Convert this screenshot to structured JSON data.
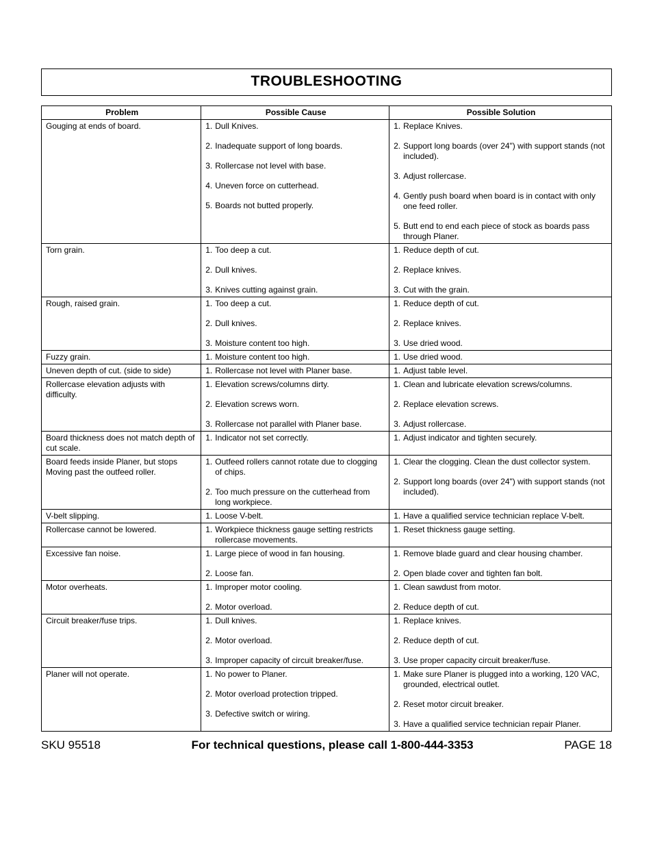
{
  "title": "TROUBLESHOOTING",
  "headers": {
    "problem": "Problem",
    "cause": "Possible Cause",
    "solution": "Possible Solution"
  },
  "footer": {
    "sku": "SKU 95518",
    "call": "For technical questions, please call 1-800-444-3353",
    "page": "PAGE 18"
  },
  "rows": [
    {
      "problem": "Gouging at ends of board.",
      "causes": [
        {
          "n": "1.",
          "t": "Dull Knives."
        },
        {
          "n": "2.",
          "t": "Inadequate support of long boards.",
          "sp": true
        },
        {
          "n": "3.",
          "t": "Rollercase not level with base.",
          "sp": true
        },
        {
          "n": "4.",
          "t": "Uneven force on cutterhead.",
          "sp": true
        },
        {
          "n": "5.",
          "t": "Boards not butted properly.",
          "sp": true
        }
      ],
      "solutions": [
        {
          "n": "1.",
          "t": "Replace Knives."
        },
        {
          "n": "2.",
          "t": "Support long boards (over 24\") with support stands (not included).",
          "sp": true
        },
        {
          "n": "3.",
          "t": "Adjust rollercase.",
          "sp": true
        },
        {
          "n": "4.",
          "t": "Gently push board when board is in contact with only one feed roller.",
          "sp": true
        },
        {
          "n": "5.",
          "t": "Butt end to end each piece of stock as boards pass through Planer.",
          "sp": true
        }
      ]
    },
    {
      "problem": "Torn grain.",
      "causes": [
        {
          "n": "1.",
          "t": "Too deep a cut."
        },
        {
          "n": "2.",
          "t": "Dull knives.",
          "sp": true
        },
        {
          "n": "3.",
          "t": "Knives cutting against grain.",
          "sp": true
        }
      ],
      "solutions": [
        {
          "n": "1.",
          "t": "Reduce depth of cut."
        },
        {
          "n": "2.",
          "t": "Replace knives.",
          "sp": true
        },
        {
          "n": "3.",
          "t": "Cut with the grain.",
          "sp": true
        }
      ]
    },
    {
      "problem": "Rough, raised grain.",
      "causes": [
        {
          "n": "1.",
          "t": "Too deep a cut."
        },
        {
          "n": "2.",
          "t": "Dull knives.",
          "sp": true
        },
        {
          "n": "3.",
          "t": "Moisture content too high.",
          "sp": true
        }
      ],
      "solutions": [
        {
          "n": "1.",
          "t": "Reduce depth of cut."
        },
        {
          "n": "2.",
          "t": "Replace knives.",
          "sp": true
        },
        {
          "n": "3.",
          "t": "Use dried wood.",
          "sp": true
        }
      ]
    },
    {
      "problem": "Fuzzy grain.",
      "causes": [
        {
          "n": "1.",
          "t": "Moisture content too high."
        }
      ],
      "solutions": [
        {
          "n": "1.",
          "t": "Use dried wood."
        }
      ]
    },
    {
      "problem": "Uneven depth of cut. (side to side)",
      "causes": [
        {
          "n": "1.",
          "t": "Rollercase not level with Planer base.",
          "hang": true
        }
      ],
      "solutions": [
        {
          "n": "1.",
          "t": "Adjust table level."
        }
      ]
    },
    {
      "problem": "Rollercase elevation adjusts with difficulty.",
      "causes": [
        {
          "n": "1.",
          "t": "Elevation screws/columns dirty."
        },
        {
          "n": "2.",
          "t": "Elevation screws worn.",
          "sp": true
        },
        {
          "n": "3.",
          "t": "Rollercase not parallel with Planer base.",
          "sp": true
        }
      ],
      "solutions": [
        {
          "n": "1.",
          "t": "Clean and lubricate elevation screws/columns."
        },
        {
          "n": "2.",
          "t": "Replace elevation screws.",
          "sp": true
        },
        {
          "n": "3.",
          "t": "Adjust rollercase.",
          "sp": true
        }
      ]
    },
    {
      "problem": "Board thickness does not match depth of cut scale.",
      "causes": [
        {
          "n": "1.",
          "t": "Indicator not set correctly."
        }
      ],
      "solutions": [
        {
          "n": "1.",
          "t": "Adjust indicator and tighten securely."
        }
      ]
    },
    {
      "problem": "Board feeds inside Planer, but stops Moving past the outfeed roller.",
      "causes": [
        {
          "n": "1.",
          "t": "Outfeed rollers cannot rotate due to clogging of chips.",
          "hang": true
        },
        {
          "n": "2.",
          "t": "Too much pressure on the cutterhead from long workpiece.",
          "sp": true,
          "hang": true
        }
      ],
      "solutions": [
        {
          "n": "1.",
          "t": "Clear the clogging.  Clean the dust collector system."
        },
        {
          "n": "2.",
          "t": "Support long boards (over 24\") with support stands (not included).",
          "sp": true
        }
      ]
    },
    {
      "problem": "V-belt slipping.",
      "causes": [
        {
          "n": "1.",
          "t": "Loose V-belt."
        }
      ],
      "solutions": [
        {
          "n": "1.",
          "t": "Have a qualified service technician replace V-belt."
        }
      ]
    },
    {
      "problem": "Rollercase cannot be lowered.",
      "causes": [
        {
          "n": "1.",
          "t": "Workpiece thickness gauge setting restricts rollercase movements.",
          "hang": true
        }
      ],
      "solutions": [
        {
          "n": "1.",
          "t": "Reset thickness gauge setting."
        }
      ]
    },
    {
      "problem": "Excessive fan noise.",
      "causes": [
        {
          "n": "1.",
          "t": "Large piece of wood in fan housing."
        },
        {
          "n": "2.",
          "t": "Loose fan.",
          "sp": true
        }
      ],
      "solutions": [
        {
          "n": "1.",
          "t": "Remove blade guard and clear housing chamber."
        },
        {
          "n": "2.",
          "t": "Open blade cover and tighten fan bolt.",
          "sp": true
        }
      ]
    },
    {
      "problem": "Motor overheats.",
      "causes": [
        {
          "n": "1.",
          "t": "Improper motor cooling."
        },
        {
          "n": "2.",
          "t": "Motor overload.",
          "sp": true
        }
      ],
      "solutions": [
        {
          "n": "1.",
          "t": "Clean sawdust from motor."
        },
        {
          "n": "2.",
          "t": "Reduce depth of cut.",
          "sp": true
        }
      ]
    },
    {
      "problem": "Circuit breaker/fuse trips.",
      "causes": [
        {
          "n": "1.",
          "t": "Dull knives."
        },
        {
          "n": "2.",
          "t": "Motor overload.",
          "sp": true
        },
        {
          "n": "3.",
          "t": "Improper capacity of circuit breaker/fuse.",
          "sp": true,
          "hang": true
        }
      ],
      "solutions": [
        {
          "n": "1.",
          "t": "Replace knives."
        },
        {
          "n": "2.",
          "t": "Reduce depth of cut.",
          "sp": true
        },
        {
          "n": "3.",
          "t": "Use proper capacity circuit breaker/fuse.",
          "sp": true
        }
      ]
    },
    {
      "problem": "Planer will not operate.",
      "causes": [
        {
          "n": "1.",
          "t": "No power to Planer."
        },
        {
          "n": "2.",
          "t": "Motor overload protection tripped.",
          "sp": true
        },
        {
          "n": "3.",
          "t": "Defective switch or wiring.",
          "sp": true
        }
      ],
      "solutions": [
        {
          "n": "1.",
          "t": "Make sure Planer is plugged into a working, 120 VAC, grounded, electrical outlet."
        },
        {
          "n": "2.",
          "t": "Reset motor circuit breaker.",
          "sp": true
        },
        {
          "n": "3.",
          "t": "Have a qualified service technician repair Planer.",
          "sp": true
        }
      ]
    }
  ]
}
